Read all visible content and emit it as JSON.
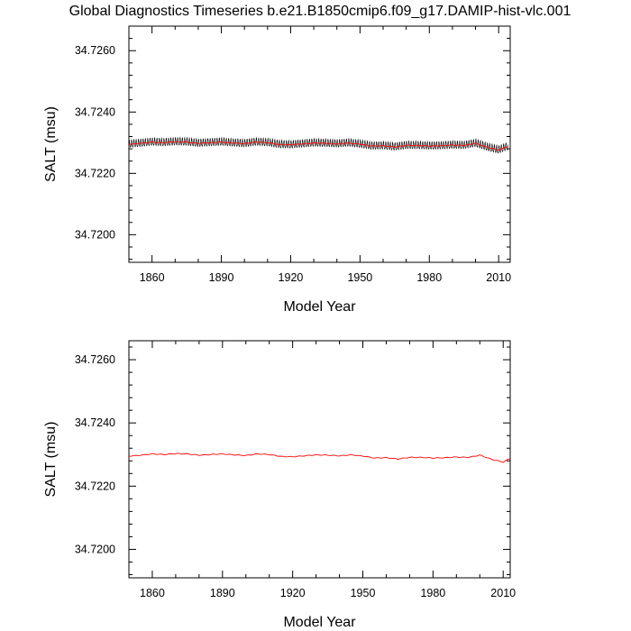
{
  "page_title": "Global Diagnostics Timeseries b.e21.B1850cmip6.f09_g17.DAMIP-hist-vlc.001",
  "chart_data": [
    {
      "type": "line",
      "xlabel": "Model Year",
      "ylabel": "SALT (msu)",
      "xlim": [
        1850,
        2015
      ],
      "ylim": [
        34.7191,
        34.7268
      ],
      "xticks": [
        1860,
        1890,
        1920,
        1950,
        1980,
        2010
      ],
      "yticks": [
        34.72,
        34.722,
        34.724,
        34.726
      ],
      "ytick_labels": [
        "34.7200",
        "34.7220",
        "34.7240",
        "34.7260"
      ],
      "grid": false,
      "series": [
        {
          "color": "#000000",
          "style": "monthly, seasonal cycle amplitude about ±0.00012",
          "x": [
            1850,
            1855,
            1860,
            1865,
            1870,
            1875,
            1880,
            1885,
            1890,
            1895,
            1900,
            1905,
            1910,
            1915,
            1920,
            1925,
            1930,
            1935,
            1940,
            1945,
            1950,
            1955,
            1960,
            1965,
            1970,
            1975,
            1980,
            1985,
            1990,
            1995,
            2000,
            2005,
            2010,
            2014
          ],
          "values": [
            34.72295,
            34.72298,
            34.72302,
            34.723,
            34.72303,
            34.72302,
            34.72298,
            34.723,
            34.72302,
            34.72299,
            34.72297,
            34.72302,
            34.723,
            34.72294,
            34.72293,
            34.72296,
            34.72299,
            34.72298,
            34.72296,
            34.72299,
            34.72295,
            34.72289,
            34.7229,
            34.72286,
            34.72291,
            34.72291,
            34.72289,
            34.7229,
            34.72292,
            34.72291,
            34.72298,
            34.72285,
            34.72276,
            34.72288
          ]
        },
        {
          "color": "#ff0000",
          "style": "annual mean",
          "x": [
            1850,
            1855,
            1860,
            1865,
            1870,
            1875,
            1880,
            1885,
            1890,
            1895,
            1900,
            1905,
            1910,
            1915,
            1920,
            1925,
            1930,
            1935,
            1940,
            1945,
            1950,
            1955,
            1960,
            1965,
            1970,
            1975,
            1980,
            1985,
            1990,
            1995,
            2000,
            2005,
            2010,
            2014
          ],
          "values": [
            34.72295,
            34.72298,
            34.72302,
            34.723,
            34.72303,
            34.72302,
            34.72298,
            34.723,
            34.72302,
            34.72299,
            34.72297,
            34.72302,
            34.723,
            34.72294,
            34.72293,
            34.72296,
            34.72299,
            34.72298,
            34.72296,
            34.72299,
            34.72295,
            34.72289,
            34.7229,
            34.72286,
            34.72291,
            34.72291,
            34.72289,
            34.7229,
            34.72292,
            34.72291,
            34.72298,
            34.72285,
            34.72276,
            34.72288
          ]
        }
      ]
    },
    {
      "type": "line",
      "xlabel": "Model Year",
      "ylabel": "SALT (msu)",
      "xlim": [
        1850,
        2013
      ],
      "ylim": [
        34.7191,
        34.7266
      ],
      "xticks": [
        1860,
        1890,
        1920,
        1950,
        1980,
        2010
      ],
      "yticks": [
        34.72,
        34.722,
        34.724,
        34.726
      ],
      "ytick_labels": [
        "34.7200",
        "34.7220",
        "34.7240",
        "34.7260"
      ],
      "grid": false,
      "series": [
        {
          "color": "#ff0000",
          "style": "annual mean",
          "x": [
            1850,
            1855,
            1860,
            1865,
            1870,
            1875,
            1880,
            1885,
            1890,
            1895,
            1900,
            1905,
            1910,
            1915,
            1920,
            1925,
            1930,
            1935,
            1940,
            1945,
            1950,
            1955,
            1960,
            1965,
            1970,
            1975,
            1980,
            1985,
            1990,
            1995,
            2000,
            2005,
            2010,
            2013
          ],
          "values": [
            34.72295,
            34.72298,
            34.72302,
            34.723,
            34.72303,
            34.72302,
            34.72298,
            34.723,
            34.72302,
            34.72299,
            34.72297,
            34.72302,
            34.723,
            34.72294,
            34.72293,
            34.72296,
            34.72299,
            34.72298,
            34.72296,
            34.72299,
            34.72295,
            34.72289,
            34.7229,
            34.72286,
            34.72291,
            34.72291,
            34.72289,
            34.7229,
            34.72292,
            34.72291,
            34.72298,
            34.72285,
            34.72276,
            34.72288
          ]
        }
      ]
    }
  ]
}
